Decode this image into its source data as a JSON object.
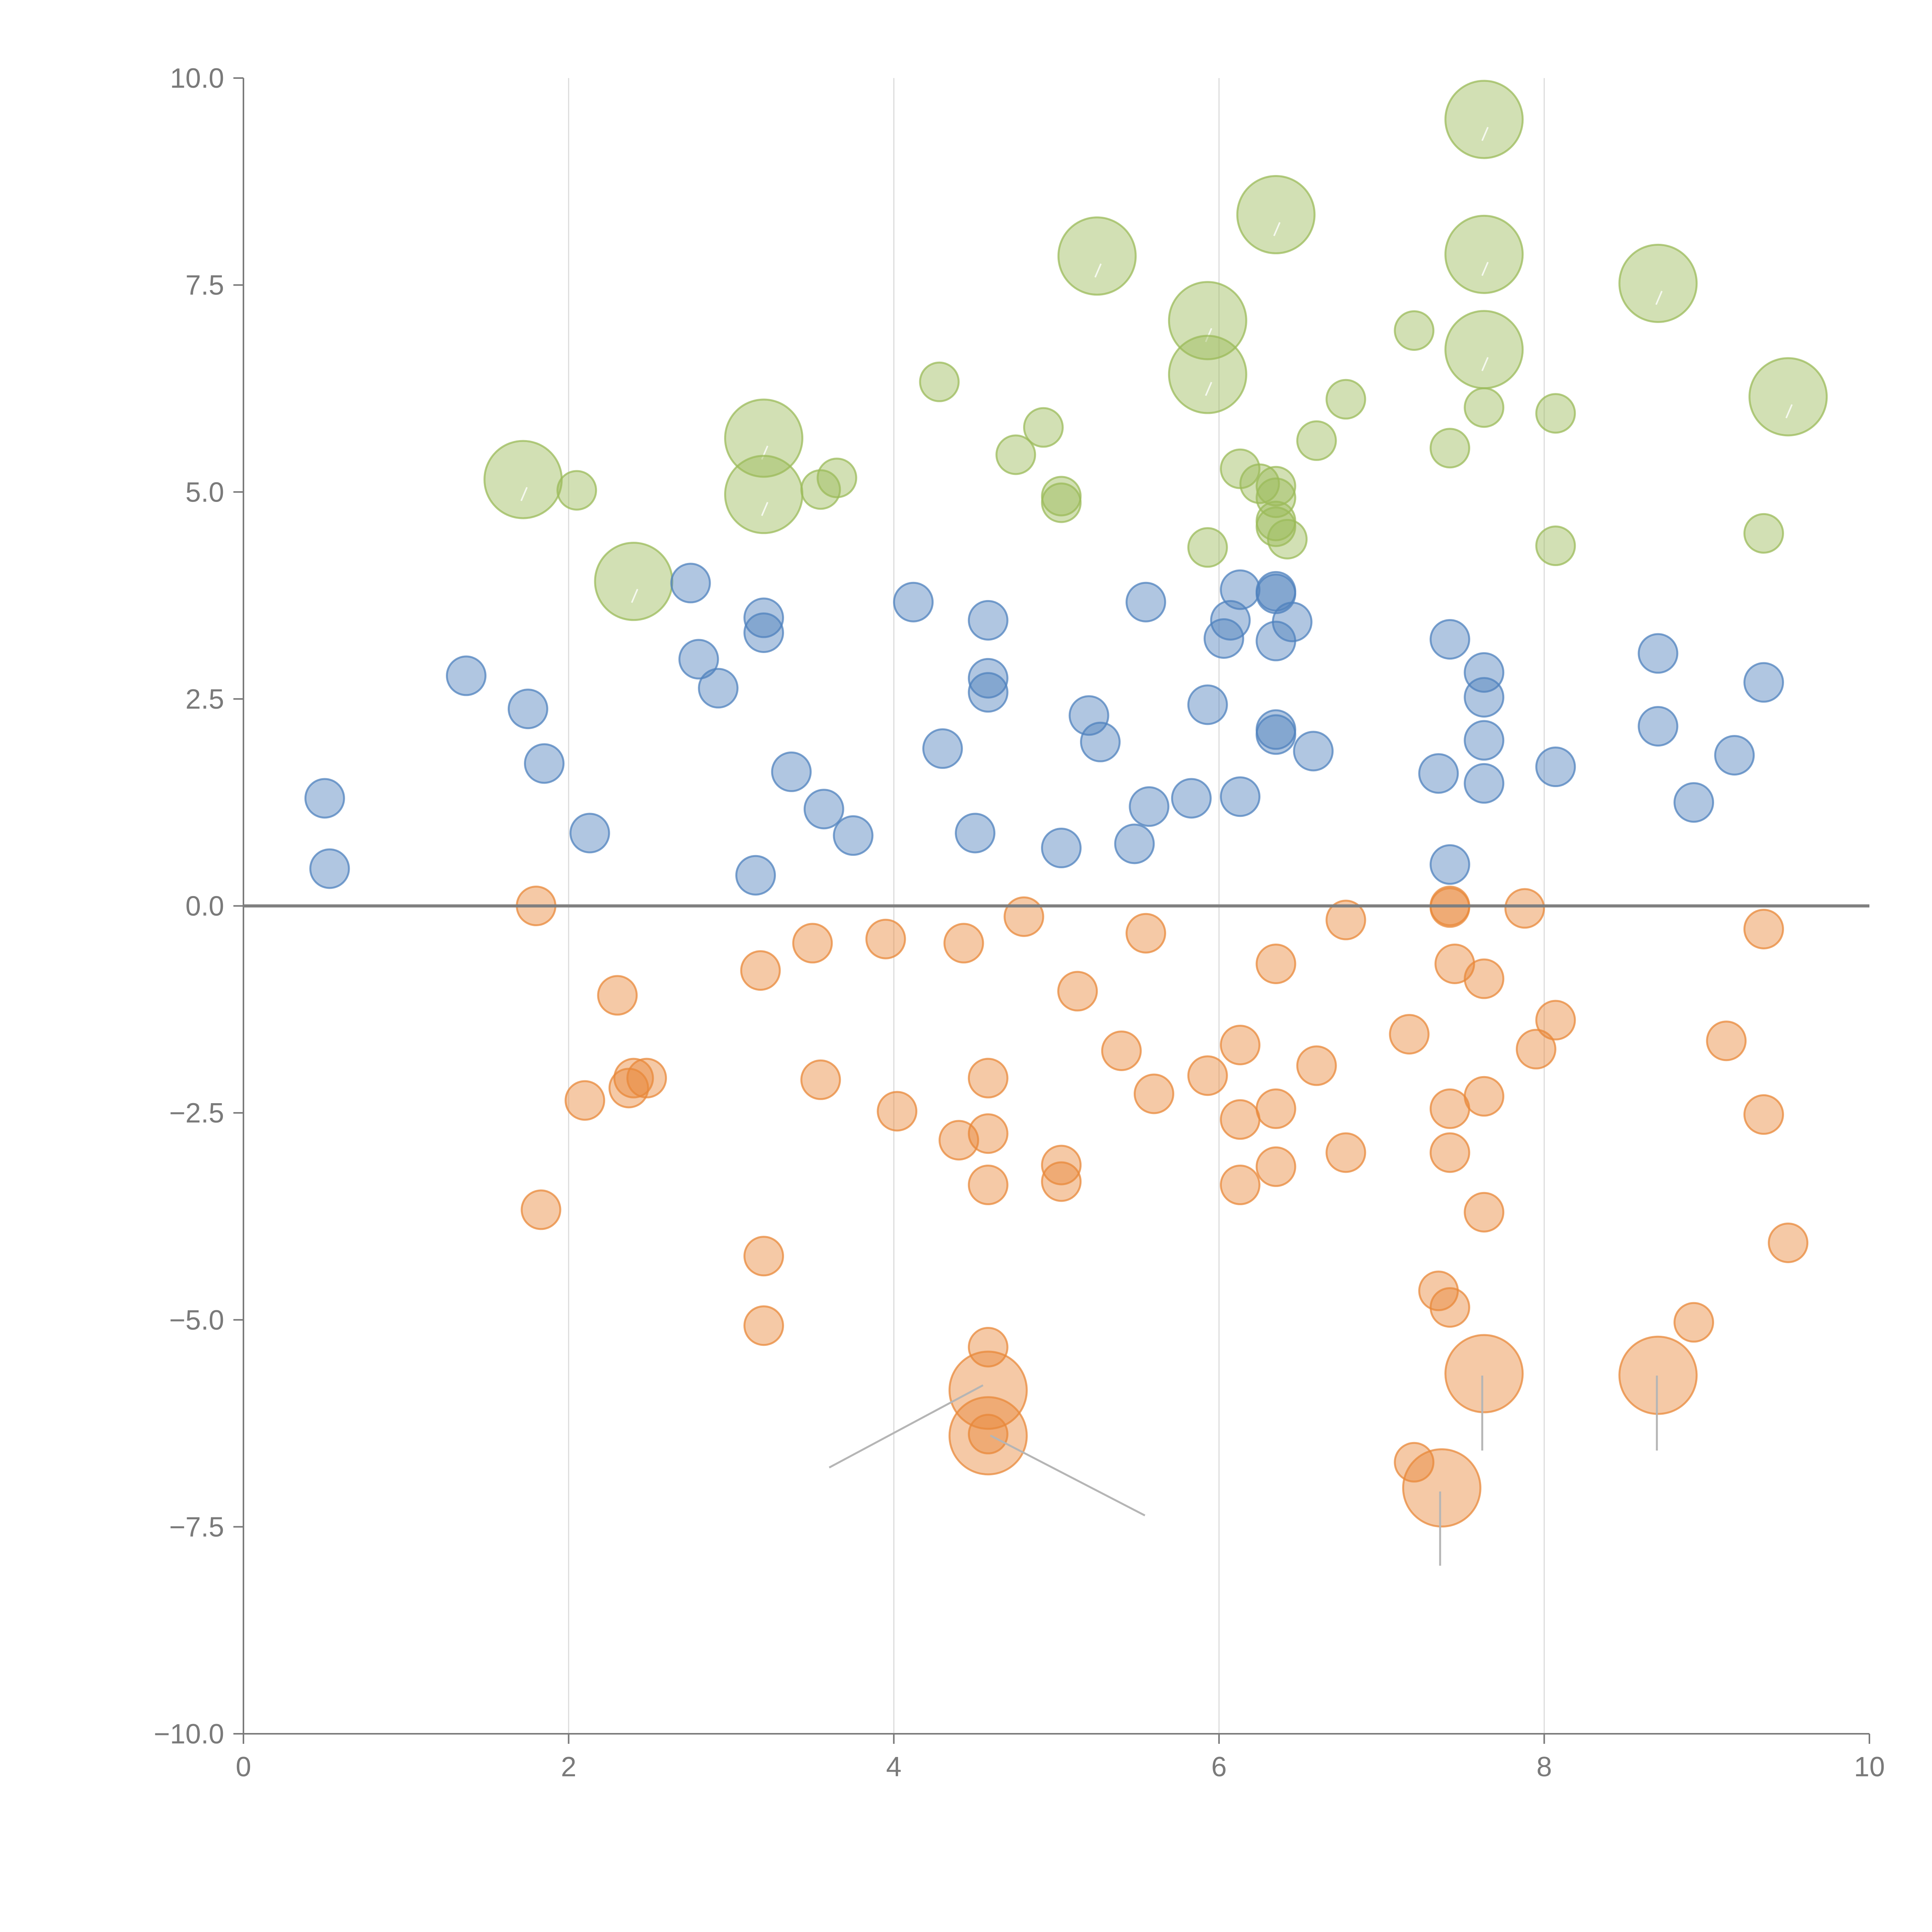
{
  "chart_data": {
    "type": "scatter",
    "title": "",
    "xlabel": "",
    "ylabel": "",
    "xlim": [
      0,
      10
    ],
    "ylim": [
      -10,
      10
    ],
    "x_ticks": [
      0,
      2,
      4,
      6,
      8,
      10
    ],
    "x_tick_labels": [
      "0",
      "2",
      "4",
      "6",
      "8",
      "10"
    ],
    "y_ticks": [
      10,
      7.5,
      5,
      2.5,
      0,
      -2.5,
      -5,
      -7.5,
      -10
    ],
    "y_tick_labels": [
      "10.0",
      "7.5",
      "5.0",
      "2.5",
      "0.0",
      "−2.5",
      "−5.0",
      "−7.5",
      "−10.0"
    ],
    "grid": "vertical",
    "zero_line": 0,
    "colors": {
      "green": "#9bbb59",
      "blue": "#4f81bd",
      "orange": "#e8883a"
    },
    "series": [
      {
        "name": "green",
        "color": "#9bbb59",
        "points": [
          [
            7.63,
            9.5,
            2
          ],
          [
            6.35,
            8.35,
            2
          ],
          [
            5.25,
            7.85,
            2
          ],
          [
            7.63,
            7.87,
            2
          ],
          [
            8.7,
            7.52,
            2
          ],
          [
            5.93,
            7.07,
            2
          ],
          [
            7.63,
            6.72,
            2
          ],
          [
            5.93,
            6.42,
            2
          ],
          [
            9.5,
            6.15,
            2
          ],
          [
            3.2,
            5.65,
            2
          ],
          [
            1.72,
            5.15,
            2
          ],
          [
            3.2,
            4.97,
            2
          ],
          [
            2.4,
            3.92,
            2
          ],
          [
            7.2,
            6.95,
            1
          ],
          [
            4.28,
            6.33,
            1
          ],
          [
            6.78,
            6.12,
            1
          ],
          [
            7.63,
            6.02,
            1
          ],
          [
            8.07,
            5.95,
            1
          ],
          [
            4.92,
            5.78,
            1
          ],
          [
            6.6,
            5.62,
            1
          ],
          [
            7.42,
            5.53,
            1
          ],
          [
            4.75,
            5.45,
            1
          ],
          [
            6.13,
            5.28,
            1
          ],
          [
            3.65,
            5.17,
            1
          ],
          [
            6.25,
            5.1,
            1
          ],
          [
            6.35,
            5.07,
            1
          ],
          [
            3.55,
            5.03,
            1
          ],
          [
            2.05,
            5.02,
            1
          ],
          [
            6.35,
            4.93,
            1
          ],
          [
            5.03,
            4.95,
            1
          ],
          [
            5.03,
            4.87,
            1
          ],
          [
            6.35,
            4.65,
            1
          ],
          [
            6.35,
            4.58,
            1
          ],
          [
            9.35,
            4.5,
            1
          ],
          [
            6.42,
            4.43,
            1
          ],
          [
            8.07,
            4.35,
            1
          ],
          [
            5.93,
            4.33,
            1
          ]
        ]
      },
      {
        "name": "blue",
        "color": "#4f81bd",
        "points": [
          [
            2.75,
            3.9,
            1
          ],
          [
            6.13,
            3.82,
            1
          ],
          [
            6.35,
            3.8,
            1
          ],
          [
            6.35,
            3.77,
            1
          ],
          [
            4.12,
            3.67,
            1
          ],
          [
            5.55,
            3.67,
            1
          ],
          [
            3.2,
            3.48,
            1
          ],
          [
            4.58,
            3.45,
            1
          ],
          [
            6.45,
            3.43,
            1
          ],
          [
            6.07,
            3.45,
            1
          ],
          [
            3.2,
            3.3,
            1
          ],
          [
            6.03,
            3.23,
            1
          ],
          [
            6.35,
            3.2,
            1
          ],
          [
            7.42,
            3.22,
            1
          ],
          [
            8.7,
            3.05,
            1
          ],
          [
            2.8,
            2.98,
            1
          ],
          [
            7.63,
            2.82,
            1
          ],
          [
            1.37,
            2.78,
            1
          ],
          [
            4.58,
            2.75,
            1
          ],
          [
            9.35,
            2.7,
            1
          ],
          [
            2.92,
            2.63,
            1
          ],
          [
            4.58,
            2.58,
            1
          ],
          [
            7.63,
            2.52,
            1
          ],
          [
            5.93,
            2.43,
            1
          ],
          [
            1.75,
            2.38,
            1
          ],
          [
            5.2,
            2.3,
            1
          ],
          [
            8.7,
            2.17,
            1
          ],
          [
            6.35,
            2.13,
            1
          ],
          [
            6.35,
            2.07,
            1
          ],
          [
            7.63,
            2.0,
            1
          ],
          [
            5.27,
            1.98,
            1
          ],
          [
            4.3,
            1.9,
            1
          ],
          [
            6.58,
            1.87,
            1
          ],
          [
            9.17,
            1.82,
            1
          ],
          [
            1.85,
            1.72,
            1
          ],
          [
            8.07,
            1.68,
            1
          ],
          [
            3.37,
            1.62,
            1
          ],
          [
            7.35,
            1.6,
            1
          ],
          [
            7.63,
            1.48,
            1
          ],
          [
            0.5,
            1.3,
            1
          ],
          [
            5.83,
            1.3,
            1
          ],
          [
            6.13,
            1.32,
            1
          ],
          [
            8.92,
            1.25,
            1
          ],
          [
            5.57,
            1.2,
            1
          ],
          [
            3.57,
            1.17,
            1
          ],
          [
            2.13,
            0.88,
            1
          ],
          [
            4.5,
            0.88,
            1
          ],
          [
            3.75,
            0.85,
            1
          ],
          [
            5.48,
            0.75,
            1
          ],
          [
            5.03,
            0.7,
            1
          ],
          [
            7.42,
            0.5,
            1
          ],
          [
            0.53,
            0.45,
            1
          ],
          [
            3.15,
            0.37,
            1
          ]
        ]
      },
      {
        "name": "orange",
        "color": "#e8883a",
        "points": [
          [
            1.8,
            0.0,
            1
          ],
          [
            7.42,
            0.0,
            1
          ],
          [
            7.42,
            -0.02,
            1
          ],
          [
            7.88,
            -0.03,
            1
          ],
          [
            4.8,
            -0.13,
            1
          ],
          [
            6.78,
            -0.17,
            1
          ],
          [
            9.35,
            -0.28,
            1
          ],
          [
            5.55,
            -0.33,
            1
          ],
          [
            3.95,
            -0.4,
            1
          ],
          [
            4.43,
            -0.45,
            1
          ],
          [
            3.5,
            -0.45,
            1
          ],
          [
            6.35,
            -0.7,
            1
          ],
          [
            7.45,
            -0.7,
            1
          ],
          [
            3.18,
            -0.78,
            1
          ],
          [
            7.63,
            -0.88,
            1
          ],
          [
            5.13,
            -1.03,
            1
          ],
          [
            2.3,
            -1.08,
            1
          ],
          [
            8.07,
            -1.38,
            1
          ],
          [
            7.17,
            -1.55,
            1
          ],
          [
            9.12,
            -1.63,
            1
          ],
          [
            6.13,
            -1.68,
            1
          ],
          [
            7.95,
            -1.73,
            1
          ],
          [
            5.4,
            -1.75,
            1
          ],
          [
            6.6,
            -1.93,
            1
          ],
          [
            2.48,
            -2.08,
            1
          ],
          [
            2.4,
            -2.08,
            1
          ],
          [
            3.55,
            -2.1,
            1
          ],
          [
            4.58,
            -2.08,
            1
          ],
          [
            5.93,
            -2.05,
            1
          ],
          [
            2.37,
            -2.2,
            1
          ],
          [
            5.6,
            -2.27,
            1
          ],
          [
            7.63,
            -2.3,
            1
          ],
          [
            2.1,
            -2.35,
            1
          ],
          [
            6.35,
            -2.45,
            1
          ],
          [
            7.42,
            -2.45,
            1
          ],
          [
            4.02,
            -2.48,
            1
          ],
          [
            9.35,
            -2.52,
            1
          ],
          [
            6.13,
            -2.58,
            1
          ],
          [
            4.58,
            -2.75,
            1
          ],
          [
            4.4,
            -2.83,
            1
          ],
          [
            7.42,
            -2.98,
            1
          ],
          [
            6.78,
            -2.98,
            1
          ],
          [
            5.03,
            -3.13,
            1
          ],
          [
            6.35,
            -3.15,
            1
          ],
          [
            5.03,
            -3.33,
            1
          ],
          [
            4.58,
            -3.37,
            1
          ],
          [
            6.13,
            -3.37,
            1
          ],
          [
            1.83,
            -3.67,
            1
          ],
          [
            7.63,
            -3.7,
            1
          ],
          [
            9.5,
            -4.07,
            1
          ],
          [
            3.2,
            -4.23,
            1
          ],
          [
            7.35,
            -4.65,
            1
          ],
          [
            7.42,
            -4.85,
            1
          ],
          [
            8.92,
            -5.03,
            1
          ],
          [
            3.2,
            -5.07,
            1
          ],
          [
            4.58,
            -5.33,
            1
          ],
          [
            4.58,
            -6.38,
            1
          ],
          [
            7.2,
            -6.72,
            1
          ],
          [
            4.58,
            -5.85,
            2
          ],
          [
            4.58,
            -6.4,
            2
          ],
          [
            7.63,
            -5.65,
            2
          ],
          [
            8.7,
            -5.67,
            2
          ],
          [
            7.37,
            -7.03,
            2
          ]
        ]
      }
    ]
  }
}
